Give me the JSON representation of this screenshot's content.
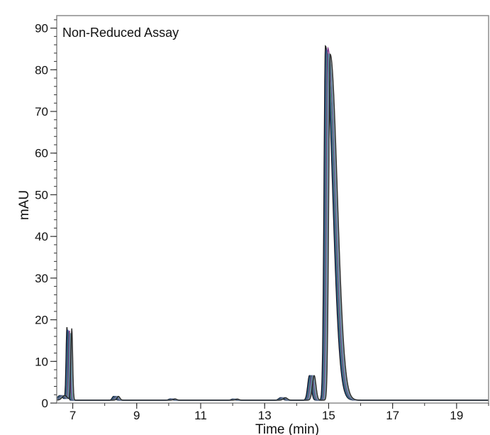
{
  "chart_data": {
    "type": "line",
    "title": "Non-Reduced Assay",
    "xlabel": "Time (min)",
    "ylabel": "mAU",
    "xlim": [
      6.5,
      20.0
    ],
    "ylim": [
      0,
      93
    ],
    "x_ticks": [
      7,
      9,
      11,
      13,
      15,
      17,
      19
    ],
    "x_tick_labels": [
      "7",
      "9",
      "11",
      "13",
      "15",
      "17",
      "19"
    ],
    "y_ticks": [
      0,
      10,
      20,
      30,
      40,
      50,
      60,
      70,
      80,
      90
    ],
    "y_tick_labels": [
      "0",
      "10",
      "20",
      "30",
      "40",
      "50",
      "60",
      "70",
      "80",
      "90"
    ],
    "x_minor_step": 1,
    "y_minor_step": 2,
    "grid": false,
    "legend": "none",
    "baseline": 0.7,
    "series": [
      {
        "color": "#000000",
        "dx": 0.0,
        "main_peak": 85.0,
        "small_peak": 17.5
      },
      {
        "color": "#1f3f8f",
        "dx": 0.025,
        "main_peak": 84.0,
        "small_peak": 17.0
      },
      {
        "color": "#2e7d5b",
        "dx": 0.05,
        "main_peak": 83.5,
        "small_peak": 16.5
      },
      {
        "color": "#7a2d86",
        "dx": 0.075,
        "main_peak": 84.5,
        "small_peak": 16.8
      },
      {
        "color": "#4a8fa8",
        "dx": 0.1,
        "main_peak": 83.0,
        "small_peak": 16.0
      },
      {
        "color": "#7c8a92",
        "dx": 0.125,
        "main_peak": 82.5,
        "small_peak": 16.2
      },
      {
        "color": "#1c1c1c",
        "dx": 0.15,
        "main_peak": 83.0,
        "small_peak": 17.2
      }
    ]
  }
}
